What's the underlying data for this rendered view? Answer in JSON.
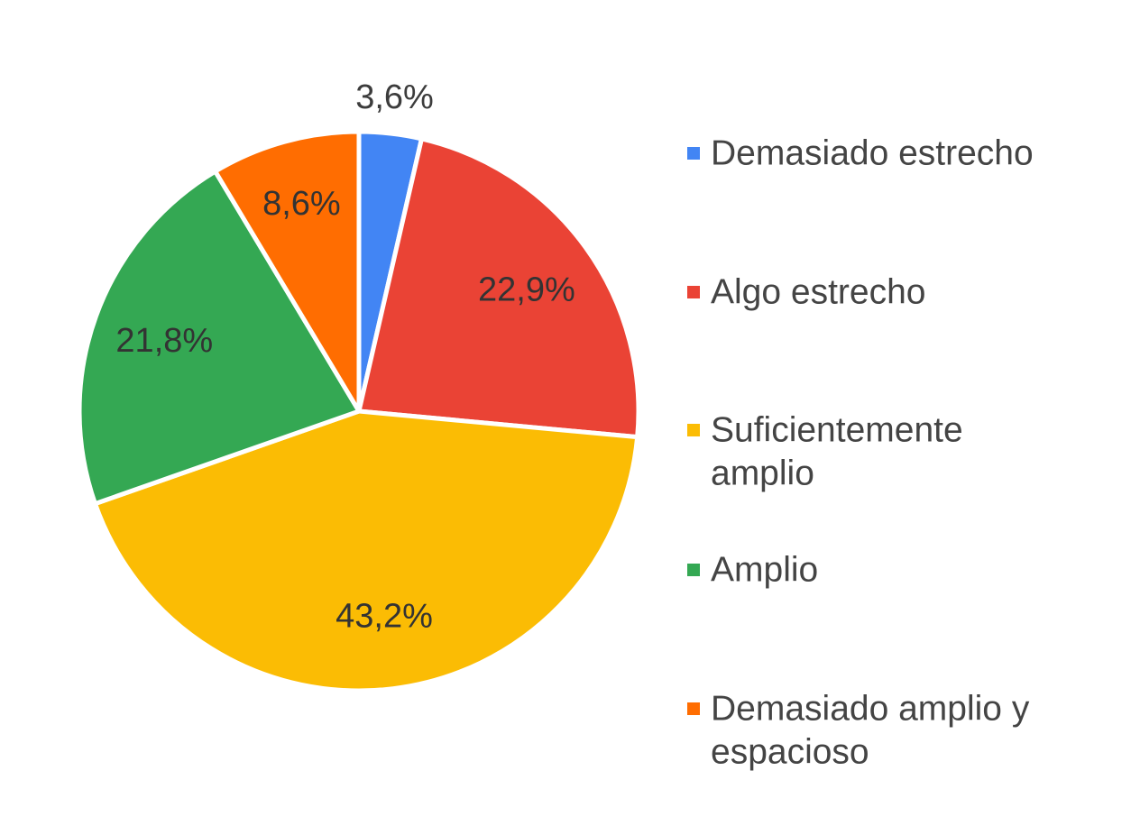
{
  "chart_data": {
    "type": "pie",
    "title": "",
    "slices": [
      {
        "label": "Demasiado estrecho",
        "value": 3.6,
        "value_label": "3,6%",
        "color": "#4285f4",
        "label_position": "outside"
      },
      {
        "label": "Algo estrecho",
        "value": 22.9,
        "value_label": "22,9%",
        "color": "#ea4335",
        "label_position": "inside"
      },
      {
        "label": "Suficientemente amplio",
        "legend_lines": [
          "Suficientemente",
          "amplio"
        ],
        "value": 43.2,
        "value_label": "43,2%",
        "color": "#fbbc04",
        "label_position": "inside"
      },
      {
        "label": "Amplio",
        "value": 21.8,
        "value_label": "21,8%",
        "color": "#34a853",
        "label_position": "inside"
      },
      {
        "label": "Demasiado amplio y espacioso",
        "legend_lines": [
          "Demasiado amplio y",
          "espacioso"
        ],
        "value": 8.6,
        "value_label": "8,6%",
        "color": "#ff6d01",
        "label_position": "inside"
      }
    ],
    "start_angle_deg": 0,
    "direction": "clockwise",
    "legend": {
      "position": "right"
    }
  }
}
